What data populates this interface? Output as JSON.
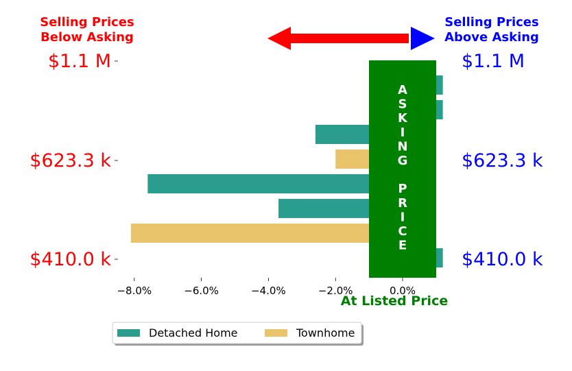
{
  "header": {
    "left_line1": "Selling Prices",
    "left_line2": "Below Asking",
    "right_line1": "Selling Prices",
    "right_line2": "Above Asking"
  },
  "price_labels": [
    "$1.1 M",
    "$623.3 k",
    "$410.0 k"
  ],
  "asking_letters": [
    "A",
    "S",
    "K",
    "I",
    "N",
    "G",
    "",
    "P",
    "R",
    "I",
    "C",
    "E"
  ],
  "at_listed_label": "At Listed Price",
  "colors": {
    "left_text": "#ff0000",
    "right_text": "#0000ff",
    "left_arrow": "#ff0000",
    "right_arrow": "#0000ff",
    "asking_box": "#008000",
    "at_listed": "#008000",
    "detached": "#2a9d8f",
    "townhome": "#e9c46a"
  },
  "chart_data": {
    "type": "bar",
    "orientation": "horizontal",
    "xlabel": "",
    "ylabel": "",
    "xlim": [
      -8.5,
      1.1
    ],
    "x_ticks": [
      -8,
      -6,
      -4,
      -2,
      0
    ],
    "x_tick_labels": [
      "−8.0%",
      "−6.0%",
      "−4.0%",
      "−2.0%",
      "0.0%"
    ],
    "y_tick_labels": [
      "$1.1 M",
      "$623.3 k",
      "$410.0 k"
    ],
    "legend": {
      "placement": "bottom-left",
      "entries": [
        "Detached Home",
        "Townhome"
      ]
    },
    "bars": [
      {
        "row": 0,
        "series": "Detached Home",
        "value": 1.2
      },
      {
        "row": 1,
        "series": "Detached Home",
        "value": 1.2
      },
      {
        "row": 2,
        "series": "Detached Home",
        "value": -2.6
      },
      {
        "row": 3,
        "series": "Townhome",
        "value": -2.0
      },
      {
        "row": 4,
        "series": "Detached Home",
        "value": -7.6
      },
      {
        "row": 5,
        "series": "Detached Home",
        "value": -3.7
      },
      {
        "row": 6,
        "series": "Townhome",
        "value": -8.1
      },
      {
        "row": 7,
        "series": "Detached Home",
        "value": 1.2
      }
    ]
  }
}
